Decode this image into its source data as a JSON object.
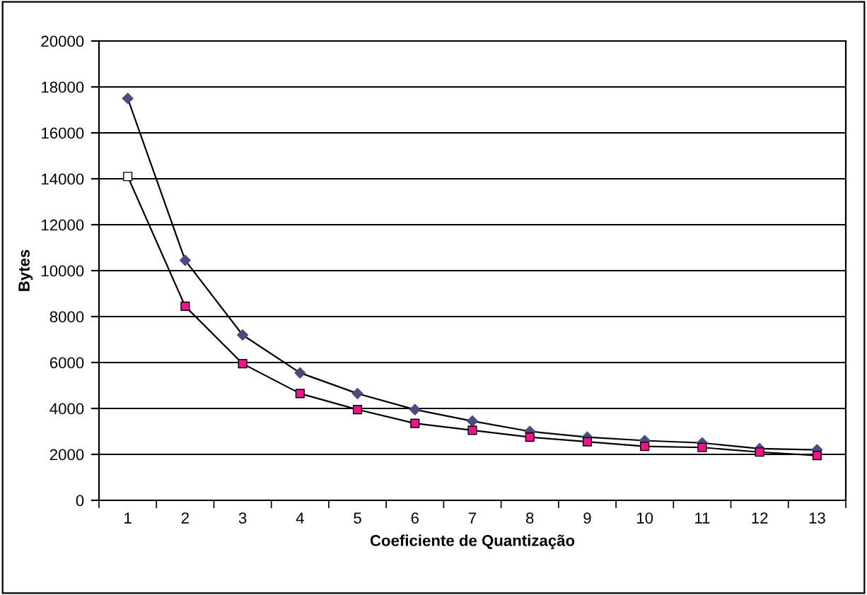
{
  "chart_data": {
    "type": "line",
    "xlabel": "Coeficiente de Quantização",
    "ylabel": "Bytes",
    "categories": [
      "1",
      "2",
      "3",
      "4",
      "5",
      "6",
      "7",
      "8",
      "9",
      "10",
      "11",
      "12",
      "13"
    ],
    "series": [
      {
        "color": "#4b4b7d",
        "marker": "diamond",
        "values": [
          17500,
          10450,
          7200,
          5550,
          4650,
          3950,
          3450,
          3000,
          2750,
          2600,
          2500,
          2250,
          2200
        ]
      },
      {
        "color": "#f0148c",
        "marker": "square",
        "colors": [
          "#ffffff",
          "#f0148c",
          "#f0148c",
          "#f0148c",
          "#f0148c",
          "#f0148c",
          "#f0148c",
          "#f0148c",
          "#f0148c",
          "#f0148c",
          "#f0148c",
          "#f0148c",
          "#f0148c"
        ],
        "values": [
          14100,
          8450,
          5950,
          4650,
          3950,
          3350,
          3050,
          2750,
          2550,
          2350,
          2300,
          2100,
          1950
        ]
      }
    ],
    "ylim": [
      0,
      20000
    ],
    "yticks": [
      0,
      2000,
      4000,
      6000,
      8000,
      10000,
      12000,
      14000,
      16000,
      18000,
      20000
    ],
    "grid": "y",
    "legend": false
  }
}
